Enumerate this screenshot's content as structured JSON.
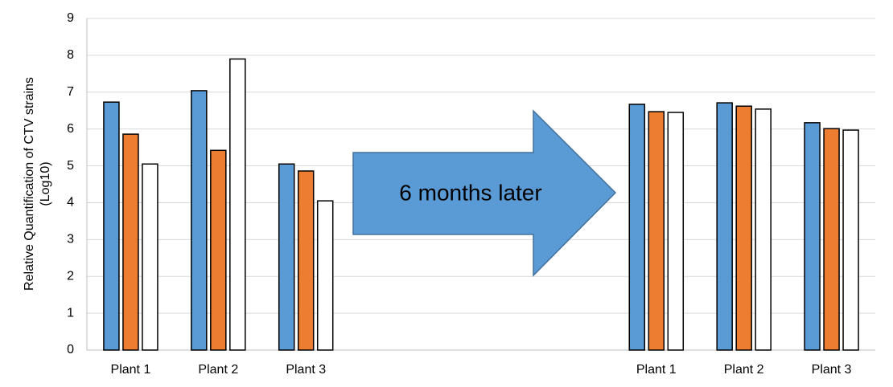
{
  "chart_data": {
    "type": "bar",
    "ylabel": [
      "Relative Quantification of CTV strains",
      "(Log10)"
    ],
    "annotation": "6 months later",
    "categories": [
      "Plant 1",
      "Plant 2",
      "Plant 3",
      null,
      null,
      null,
      "Plant 1",
      "Plant 2",
      "Plant 3"
    ],
    "series": [
      {
        "color": "#5b9bd5",
        "values": [
          6.73,
          7.04,
          5.05,
          null,
          null,
          null,
          6.67,
          6.71,
          6.17
        ]
      },
      {
        "color": "#ed7d31",
        "values": [
          5.86,
          5.42,
          4.86,
          null,
          null,
          null,
          6.47,
          6.62,
          6.01
        ]
      },
      {
        "color": "#ffffff",
        "values": [
          5.05,
          7.9,
          4.05,
          null,
          null,
          null,
          6.45,
          6.54,
          5.97
        ]
      }
    ],
    "ylim": [
      0,
      9
    ],
    "yticks": [
      0,
      1,
      2,
      3,
      4,
      5,
      6,
      7,
      8,
      9
    ],
    "grid": true
  }
}
